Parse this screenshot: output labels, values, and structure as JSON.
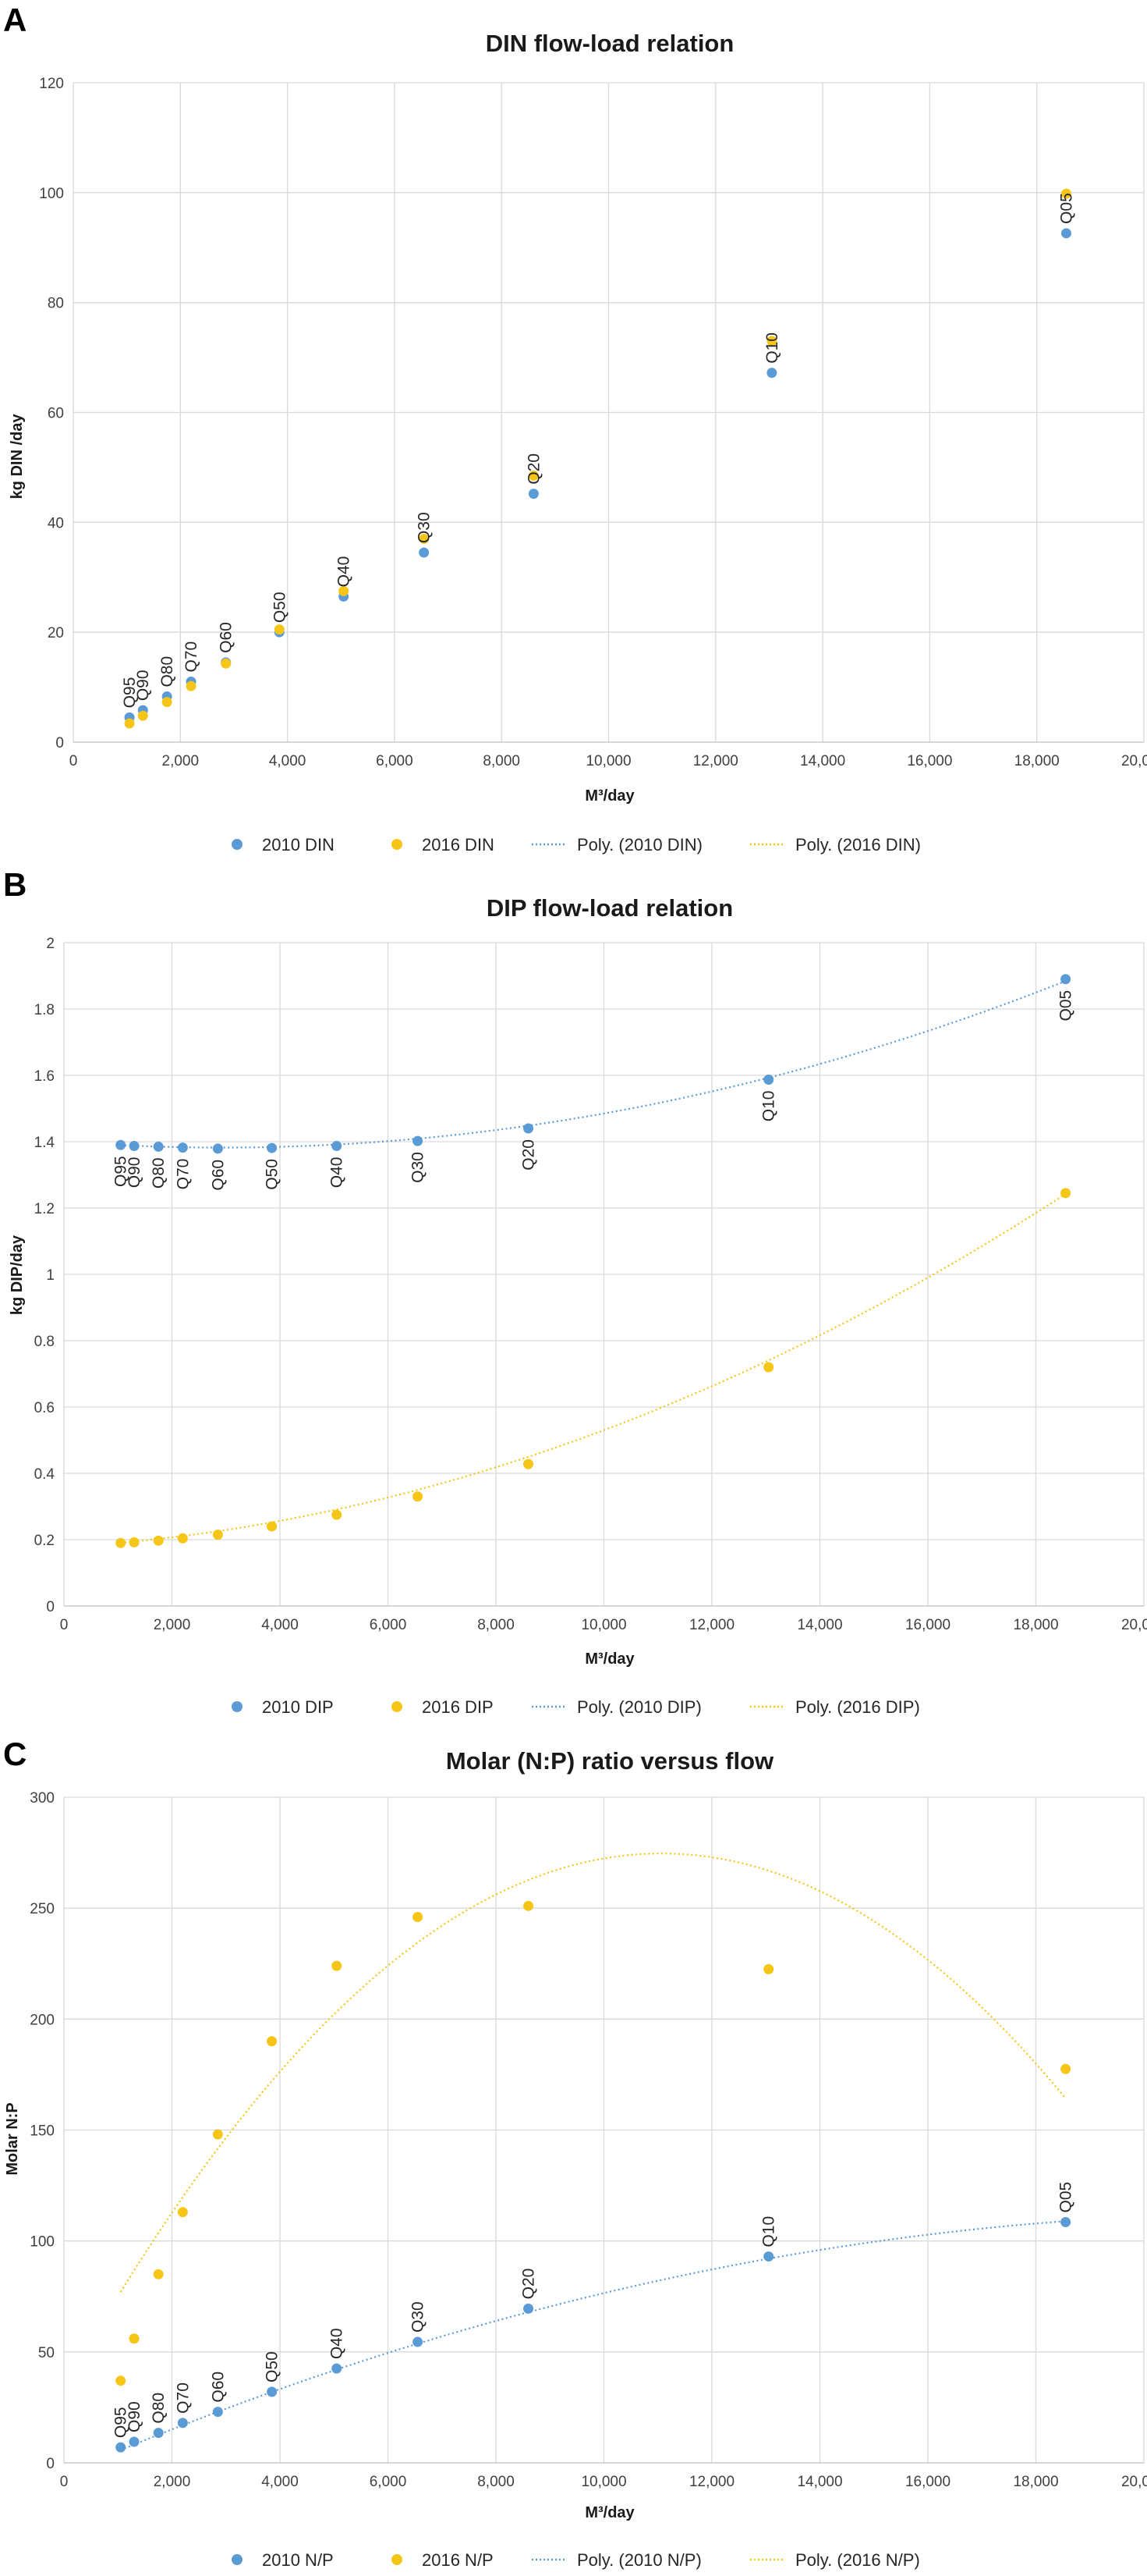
{
  "colors": {
    "s2010": "#5b9bd5",
    "s2016": "#f5c518",
    "grid": "#d9d9d9",
    "axis": "#bfbfbf"
  },
  "chart_data": [
    {
      "panel": "A",
      "type": "scatter",
      "title": "DIN flow-load relation",
      "xlabel": "M³/day",
      "ylabel": "kg DIN /day",
      "xlim": [
        0,
        20000
      ],
      "ylim": [
        0,
        120
      ],
      "xticks": [
        0,
        2000,
        4000,
        6000,
        8000,
        10000,
        12000,
        14000,
        16000,
        18000,
        20000
      ],
      "xtick_labels": [
        "0",
        "2,000",
        "4,000",
        "6,000",
        "8,000",
        "10,000",
        "12,000",
        "14,000",
        "16,000",
        "18,000",
        "20,000"
      ],
      "yticks": [
        0,
        20,
        40,
        60,
        80,
        100,
        120
      ],
      "ytick_labels": [
        "0",
        "20",
        "40",
        "60",
        "80",
        "100",
        "120"
      ],
      "grid": true,
      "label_position": "above",
      "legend_position": "bottom",
      "legend": [
        "2010 DIN",
        "2016 DIN",
        "Poly. (2010 DIN)",
        "Poly. (2016 DIN)"
      ],
      "point_labels": [
        "Q95",
        "Q90",
        "Q80",
        "Q70",
        "Q60",
        "Q50",
        "Q40",
        "Q30",
        "Q20",
        "Q10",
        "Q05"
      ],
      "series": [
        {
          "name": "2010 DIN",
          "color": "#5b9bd5",
          "x": [
            1050,
            1300,
            1750,
            2200,
            2850,
            3850,
            5050,
            6550,
            8600,
            13050,
            18550
          ],
          "y": [
            4.5,
            5.8,
            8.3,
            11.0,
            14.5,
            20.0,
            26.5,
            34.5,
            45.2,
            67.2,
            92.6
          ],
          "trend": [
            0,
            4.86,
            1.1e-07
          ]
        },
        {
          "name": "2016 DIN",
          "color": "#f5c518",
          "x": [
            1050,
            1300,
            1750,
            2200,
            2850,
            3850,
            5050,
            6550,
            8600,
            13050,
            18550
          ],
          "y": [
            3.4,
            4.8,
            7.3,
            10.2,
            14.3,
            20.5,
            27.5,
            37.0,
            48.5,
            73.0,
            99.8
          ],
          "trend": [
            -2.0,
            5.65,
            1e-07
          ]
        }
      ]
    },
    {
      "panel": "B",
      "type": "scatter",
      "title": "DIP flow-load relation",
      "xlabel": "M³/day",
      "ylabel": "kg DIP/day",
      "xlim": [
        0,
        20000
      ],
      "ylim": [
        0,
        2
      ],
      "xticks": [
        0,
        2000,
        4000,
        6000,
        8000,
        10000,
        12000,
        14000,
        16000,
        18000,
        20000
      ],
      "xtick_labels": [
        "0",
        "2,000",
        "4,000",
        "6,000",
        "8,000",
        "10,000",
        "12,000",
        "14,000",
        "16,000",
        "18,000",
        "20,000"
      ],
      "yticks": [
        0,
        0.2,
        0.4,
        0.6,
        0.8,
        1,
        1.2,
        1.4,
        1.6,
        1.8,
        2
      ],
      "ytick_labels": [
        "0",
        "0.2",
        "0.4",
        "0.6",
        "0.8",
        "1",
        "1.2",
        "1.4",
        "1.6",
        "1.8",
        "2"
      ],
      "grid": true,
      "label_position": "below",
      "legend_position": "bottom",
      "legend": [
        "2010 DIP",
        "2016 DIP",
        "Poly. (2010 DIP)",
        "Poly. (2016 DIP)"
      ],
      "point_labels": [
        "Q95",
        "Q90",
        "Q80",
        "Q70",
        "Q60",
        "Q50",
        "Q40",
        "Q30",
        "Q20",
        "Q10",
        "Q05"
      ],
      "series": [
        {
          "name": "2010 DIP",
          "color": "#5b9bd5",
          "x": [
            1050,
            1300,
            1750,
            2200,
            2850,
            3850,
            5050,
            6550,
            8600,
            13050,
            18550
          ],
          "y": [
            1.39,
            1.387,
            1.385,
            1.382,
            1.379,
            1.381,
            1.387,
            1.402,
            1.44,
            1.587,
            1.89
          ],
          "trend": [
            1.4,
            -1.21e-05,
            2.06e-09
          ]
        },
        {
          "name": "2016 DIP",
          "color": "#f5c518",
          "x": [
            1050,
            1300,
            1750,
            2200,
            2850,
            3850,
            5050,
            6550,
            8600,
            13050,
            18550
          ],
          "y": [
            0.19,
            0.192,
            0.197,
            0.204,
            0.215,
            0.24,
            0.275,
            0.33,
            0.428,
            0.72,
            1.245
          ],
          "trend": [
            0.178,
            9.32e-06,
            2.59e-09
          ]
        }
      ]
    },
    {
      "panel": "C",
      "type": "scatter",
      "title": "Molar (N:P) ratio versus flow",
      "xlabel": "M³/day",
      "ylabel": "Molar N:P",
      "xlim": [
        0,
        20000
      ],
      "ylim": [
        0,
        300
      ],
      "xticks": [
        0,
        2000,
        4000,
        6000,
        8000,
        10000,
        12000,
        14000,
        16000,
        18000,
        20000
      ],
      "xtick_labels": [
        "0",
        "2,000",
        "4,000",
        "6,000",
        "8,000",
        "10,000",
        "12,000",
        "14,000",
        "16,000",
        "18,000",
        "20,000"
      ],
      "yticks": [
        0,
        50,
        100,
        150,
        200,
        250,
        300
      ],
      "ytick_labels": [
        "0",
        "50",
        "100",
        "150",
        "200",
        "250",
        "300"
      ],
      "grid": true,
      "label_position": "above",
      "legend_position": "bottom",
      "legend": [
        "2010 N/P",
        "2016 N/P",
        "Poly. (2010 N/P)",
        "Poly. (2016 N/P)"
      ],
      "point_labels": [
        "Q95",
        "Q90",
        "Q80",
        "Q70",
        "Q60",
        "Q50",
        "Q40",
        "Q30",
        "Q20",
        "Q10",
        "Q05"
      ],
      "series": [
        {
          "name": "2010 N/P",
          "color": "#5b9bd5",
          "x": [
            1050,
            1300,
            1750,
            2200,
            2850,
            3850,
            5050,
            6550,
            8600,
            13050,
            18550
          ],
          "y": [
            7,
            9.5,
            13.5,
            18,
            23,
            32,
            42.5,
            54.5,
            69.5,
            93,
            108.5
          ],
          "trend": [
            -5.0,
            0.0105,
            -2.35e-07
          ]
        },
        {
          "name": "2016 N/P",
          "color": "#f5c518",
          "x": [
            1050,
            1300,
            1750,
            2200,
            2850,
            3850,
            5050,
            6550,
            8600,
            13050,
            18550
          ],
          "y": [
            37,
            56,
            85,
            113,
            148,
            190,
            224,
            246,
            251,
            222.5,
            177.5
          ],
          "trend": [
            33.4,
            0.0436,
            -1.97e-06
          ]
        }
      ]
    }
  ]
}
